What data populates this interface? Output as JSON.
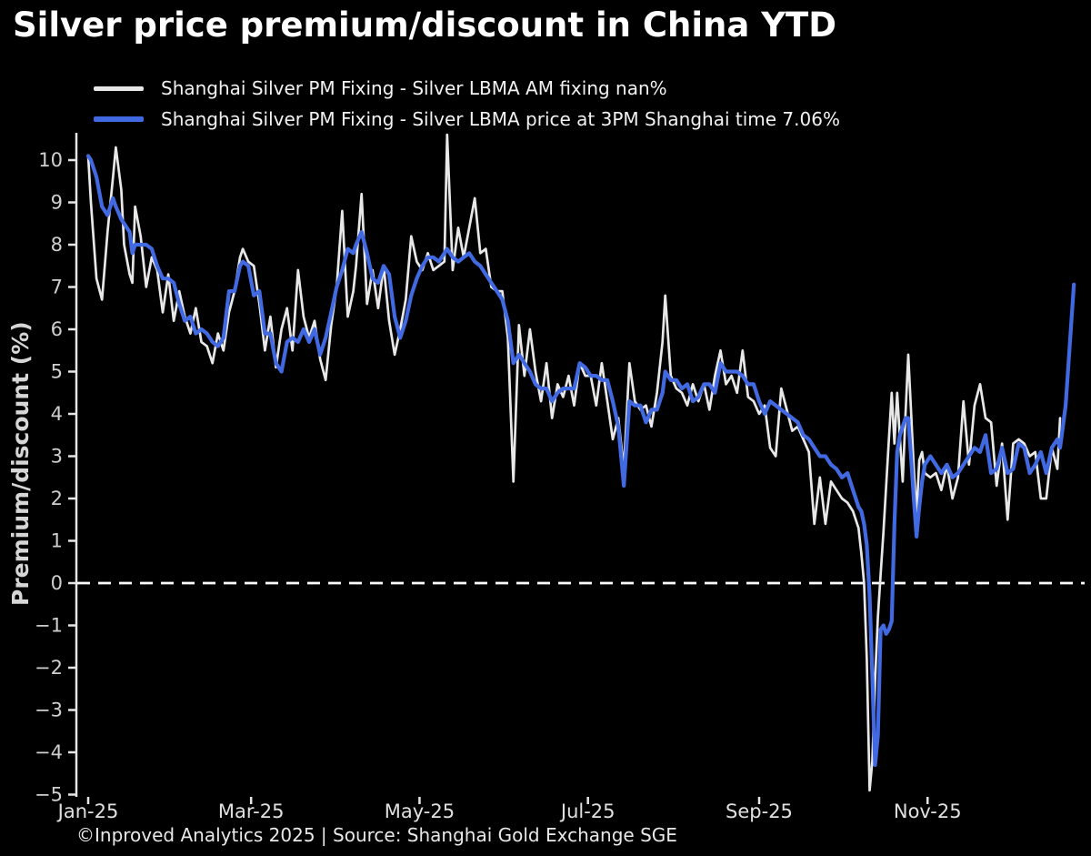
{
  "title": "Silver price premium/discount in China YTD",
  "footer": "©Inproved Analytics 2025 | Source: Shanghai Gold Exchange SGE",
  "legend": [
    {
      "label": "Shanghai Silver PM Fixing - Silver LBMA AM fixing nan%",
      "color": "#e8e8e8"
    },
    {
      "label": "Shanghai Silver PM Fixing - Silver LBMA price at 3PM Shanghai time 7.06%",
      "color": "#4169e1"
    }
  ],
  "colors": {
    "background": "#000000",
    "title_text": "#ffffff",
    "tick_label": "#cfcfcf",
    "xtick_label": "#e0e0e0",
    "spine": "#e6e6e6",
    "zero_line": "#ffffff",
    "line_white": "#e8e8e8",
    "line_blue": "#4169e1"
  },
  "chart_data": {
    "type": "line",
    "title": "Silver price premium/discount in China YTD",
    "xlabel": "",
    "ylabel": "Premium/discount (%)",
    "ylim": [
      -5,
      10.7
    ],
    "grid": false,
    "zero_line_dashed": true,
    "legend_position": "upper-left",
    "yticks": [
      10,
      9,
      8,
      7,
      6,
      5,
      4,
      3,
      2,
      1,
      0,
      -1,
      -2,
      -3,
      -4,
      -5
    ],
    "xticks": [
      {
        "day": 1,
        "label": "Jan-25"
      },
      {
        "day": 60,
        "label": "Mar-25"
      },
      {
        "day": 121,
        "label": "May-25"
      },
      {
        "day": 182,
        "label": "Jul-25"
      },
      {
        "day": 244,
        "label": "Sep-25"
      },
      {
        "day": 305,
        "label": "Nov-25"
      }
    ],
    "x_unit": "day-of-year-2025",
    "x_days": [
      1,
      2,
      4,
      6,
      8,
      10,
      11,
      13,
      14,
      16,
      17,
      18,
      20,
      22,
      24,
      26,
      28,
      30,
      32,
      34,
      36,
      38,
      40,
      42,
      44,
      46,
      48,
      50,
      52,
      54,
      56,
      57,
      59,
      61,
      63,
      65,
      67,
      69,
      71,
      73,
      75,
      77,
      79,
      81,
      83,
      85,
      87,
      89,
      91,
      93,
      95,
      97,
      98,
      100,
      102,
      104,
      106,
      108,
      110,
      112,
      114,
      116,
      118,
      120,
      122,
      124,
      126,
      128,
      130,
      131,
      133,
      135,
      137,
      139,
      141,
      143,
      145,
      147,
      149,
      151,
      153,
      155,
      157,
      159,
      161,
      163,
      165,
      167,
      169,
      171,
      173,
      175,
      177,
      179,
      181,
      183,
      185,
      187,
      189,
      191,
      193,
      195,
      197,
      199,
      201,
      203,
      205,
      207,
      209,
      210,
      212,
      214,
      216,
      218,
      220,
      222,
      224,
      226,
      228,
      230,
      232,
      234,
      236,
      238,
      240,
      242,
      244,
      246,
      248,
      250,
      252,
      254,
      256,
      258,
      260,
      262,
      264,
      266,
      268,
      270,
      272,
      274,
      276,
      278,
      280,
      281,
      282,
      283,
      284,
      285,
      286,
      287,
      288,
      289,
      290,
      291,
      292,
      293,
      294,
      295,
      296,
      297,
      298,
      299,
      300,
      301,
      302,
      303,
      304,
      306,
      308,
      310,
      312,
      314,
      316,
      318,
      320,
      322,
      324,
      326,
      328,
      330,
      332,
      334,
      336,
      338,
      340,
      342,
      344,
      346,
      348,
      350,
      352,
      353,
      355,
      358
    ],
    "series": [
      {
        "name": "Shanghai Silver PM Fixing - Silver LBMA AM fixing",
        "last_value_label": "nan%",
        "color": "#e8e8e8",
        "values": [
          10.1,
          9.0,
          7.2,
          6.7,
          8.3,
          9.6,
          10.3,
          9.3,
          8.0,
          7.3,
          7.1,
          8.9,
          8.2,
          7.0,
          7.7,
          7.4,
          6.4,
          7.3,
          6.2,
          6.9,
          6.3,
          5.9,
          6.5,
          5.7,
          5.6,
          5.2,
          5.9,
          5.5,
          6.4,
          6.9,
          7.7,
          7.9,
          7.6,
          7.5,
          6.6,
          5.5,
          6.3,
          5.1,
          6.0,
          6.5,
          5.5,
          7.4,
          6.3,
          5.8,
          6.2,
          5.3,
          4.8,
          6.1,
          7.0,
          8.8,
          6.3,
          6.9,
          7.5,
          9.2,
          6.6,
          7.4,
          6.5,
          7.5,
          6.2,
          5.4,
          6.0,
          6.7,
          8.2,
          7.6,
          7.4,
          7.8,
          7.4,
          7.5,
          7.6,
          10.6,
          7.4,
          8.4,
          7.7,
          8.4,
          9.1,
          7.8,
          7.9,
          7.0,
          6.9,
          6.9,
          5.8,
          2.4,
          6.1,
          4.9,
          6.0,
          5.0,
          4.3,
          5.2,
          3.9,
          4.7,
          4.4,
          4.9,
          4.2,
          5.2,
          4.9,
          4.9,
          4.2,
          5.2,
          4.3,
          3.4,
          3.9,
          2.7,
          5.2,
          4.3,
          4.1,
          4.2,
          3.7,
          4.5,
          5.7,
          6.8,
          4.9,
          4.6,
          4.5,
          4.2,
          4.7,
          4.3,
          4.7,
          4.1,
          4.9,
          5.5,
          4.7,
          4.9,
          4.5,
          5.5,
          4.4,
          4.3,
          4.0,
          4.2,
          3.2,
          3.0,
          4.6,
          4.1,
          3.6,
          3.7,
          3.4,
          3.1,
          1.4,
          2.5,
          1.4,
          2.4,
          2.2,
          2.0,
          1.9,
          1.7,
          1.3,
          0.7,
          0.0,
          -1.8,
          -4.9,
          -4.2,
          -2.3,
          -0.8,
          0.2,
          1.2,
          2.3,
          3.4,
          4.5,
          3.3,
          4.5,
          3.4,
          2.4,
          4.0,
          5.4,
          4.1,
          2.7,
          1.6,
          2.9,
          3.1,
          2.6,
          2.5,
          2.6,
          2.2,
          2.8,
          2.0,
          2.5,
          4.3,
          2.8,
          4.2,
          4.7,
          3.9,
          3.8,
          2.3,
          3.3,
          1.5,
          3.3,
          3.4,
          3.3,
          3.0,
          3.1,
          2.0,
          2.0,
          3.2,
          2.7,
          3.9,
          null,
          null
        ]
      },
      {
        "name": "Shanghai Silver PM Fixing - Silver LBMA price at 3PM Shanghai time",
        "last_value_label": "7.06%",
        "color": "#4169e1",
        "values": [
          10.1,
          10.0,
          9.6,
          8.9,
          8.7,
          9.1,
          8.9,
          8.6,
          8.5,
          8.3,
          7.8,
          8.0,
          8.0,
          8.0,
          7.9,
          7.5,
          7.2,
          7.2,
          7.1,
          6.6,
          6.2,
          6.3,
          5.9,
          6.0,
          5.9,
          5.7,
          5.6,
          5.8,
          6.9,
          6.9,
          7.5,
          7.6,
          7.5,
          6.8,
          6.9,
          5.9,
          5.9,
          5.2,
          5.0,
          5.7,
          5.8,
          5.7,
          6.0,
          5.7,
          6.0,
          5.4,
          5.8,
          6.4,
          7.0,
          7.4,
          7.9,
          7.8,
          8.0,
          8.3,
          7.8,
          7.2,
          7.1,
          7.5,
          7.3,
          6.3,
          5.8,
          6.2,
          6.8,
          7.2,
          7.5,
          7.7,
          7.7,
          7.6,
          7.8,
          7.9,
          7.7,
          7.6,
          7.7,
          7.8,
          7.6,
          7.5,
          7.3,
          7.1,
          6.9,
          6.7,
          6.2,
          5.2,
          5.4,
          5.2,
          5.0,
          4.7,
          4.6,
          4.6,
          4.3,
          4.5,
          4.6,
          4.6,
          4.6,
          5.2,
          5.1,
          4.9,
          4.9,
          4.8,
          4.8,
          4.3,
          3.7,
          2.3,
          4.3,
          4.2,
          4.2,
          3.8,
          4.1,
          4.1,
          4.5,
          5.0,
          4.8,
          4.8,
          4.6,
          4.7,
          4.3,
          4.4,
          4.7,
          4.7,
          4.5,
          5.2,
          5.0,
          5.0,
          5.0,
          4.9,
          4.7,
          4.7,
          4.3,
          4.0,
          4.3,
          4.2,
          4.1,
          4.0,
          3.9,
          3.8,
          3.5,
          3.4,
          3.2,
          3.0,
          3.0,
          2.8,
          2.7,
          2.5,
          2.6,
          2.2,
          1.8,
          1.7,
          1.4,
          0.9,
          -0.3,
          -2.2,
          -4.3,
          -3.6,
          -1.1,
          -1.0,
          -1.2,
          -1.1,
          -0.9,
          1.4,
          3.1,
          3.5,
          3.7,
          3.9,
          3.9,
          3.0,
          2.0,
          1.1,
          1.8,
          2.4,
          2.8,
          3.0,
          2.8,
          2.6,
          2.8,
          2.5,
          2.6,
          2.8,
          3.0,
          3.2,
          3.1,
          3.5,
          2.6,
          2.7,
          3.2,
          2.6,
          2.7,
          3.3,
          3.2,
          2.6,
          2.8,
          3.1,
          2.6,
          3.2,
          3.4,
          3.2,
          4.2,
          7.06
        ]
      }
    ]
  }
}
